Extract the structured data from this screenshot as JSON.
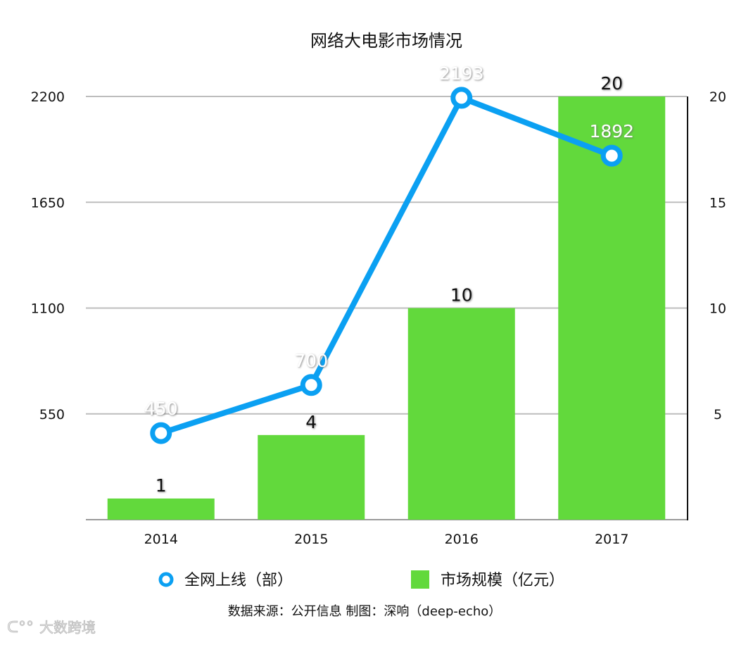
{
  "chart_data": {
    "type": "bar+line",
    "title": "网络大电影市场情况",
    "categories": [
      "2014",
      "2015",
      "2016",
      "2017"
    ],
    "series": [
      {
        "name": "市场规模（亿元）",
        "type": "bar",
        "axis": "right",
        "values": [
          1,
          4,
          10,
          20
        ],
        "color": "#62d93c"
      },
      {
        "name": "全网上线（部）",
        "type": "line",
        "axis": "left",
        "values": [
          450,
          700,
          2193,
          1892
        ],
        "color": "#0ba0f2"
      }
    ],
    "left_axis": {
      "range": [
        0,
        2200
      ],
      "ticks": [
        "550",
        "1100",
        "1650",
        "2200"
      ]
    },
    "right_axis": {
      "range": [
        0,
        20
      ],
      "ticks": [
        "5",
        "10",
        "15",
        "20"
      ]
    },
    "grid": true,
    "legend_placement": "bottom",
    "source_note": "数据来源：公开信息   制图：深响（deep-echo）"
  },
  "watermark": "大数跨境"
}
